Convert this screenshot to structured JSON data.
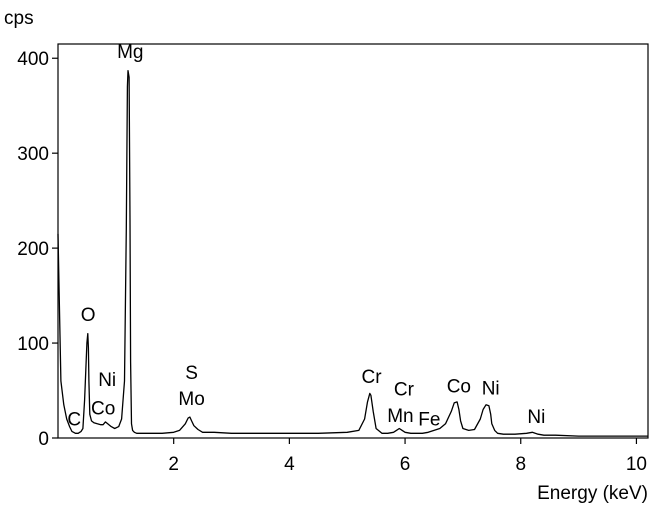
{
  "chart_data": {
    "type": "line",
    "title": "",
    "xlabel": "Energy (keV)",
    "ylabel": "cps",
    "xlim": [
      0,
      10.2
    ],
    "ylim": [
      0,
      415
    ],
    "x_ticks": [
      2,
      4,
      6,
      8,
      10
    ],
    "y_ticks": [
      0,
      100,
      200,
      300,
      400
    ],
    "x_tick_labels": [
      "2",
      "4",
      "6",
      "8",
      "10"
    ],
    "y_tick_labels": [
      "0",
      "100",
      "200",
      "300",
      "400"
    ],
    "grid": false,
    "legend": "none",
    "line_color": "#000000",
    "series": [
      {
        "x": [
          0.0,
          0.02,
          0.05,
          0.1,
          0.15,
          0.2,
          0.24,
          0.27,
          0.3,
          0.35,
          0.4,
          0.43,
          0.46,
          0.5,
          0.515,
          0.525,
          0.535,
          0.55,
          0.58,
          0.62,
          0.68,
          0.74,
          0.78,
          0.82,
          0.86,
          0.92,
          0.98,
          1.05,
          1.1,
          1.15,
          1.18,
          1.2,
          1.21,
          1.23,
          1.245,
          1.255,
          1.27,
          1.29,
          1.32,
          1.36,
          1.4,
          1.5,
          1.6,
          1.8,
          2.0,
          2.1,
          2.2,
          2.25,
          2.28,
          2.31,
          2.35,
          2.42,
          2.5,
          2.7,
          3.0,
          3.5,
          4.0,
          4.5,
          5.0,
          5.2,
          5.3,
          5.35,
          5.39,
          5.41,
          5.45,
          5.5,
          5.6,
          5.7,
          5.8,
          5.85,
          5.9,
          5.95,
          6.0,
          6.1,
          6.2,
          6.3,
          6.4,
          6.5,
          6.6,
          6.7,
          6.8,
          6.85,
          6.9,
          6.93,
          6.96,
          7.0,
          7.1,
          7.2,
          7.3,
          7.35,
          7.4,
          7.45,
          7.48,
          7.5,
          7.55,
          7.6,
          7.7,
          7.9,
          8.1,
          8.2,
          8.25,
          8.3,
          8.4,
          8.6,
          9.0,
          9.5,
          10.0,
          10.2
        ],
        "y": [
          215,
          150,
          60,
          35,
          20,
          12,
          7,
          6,
          5,
          5,
          7,
          10,
          40,
          100,
          110,
          95,
          60,
          25,
          18,
          16,
          15,
          14,
          14,
          17,
          15,
          12,
          10,
          12,
          20,
          60,
          220,
          370,
          387,
          380,
          230,
          80,
          15,
          8,
          6,
          5,
          5,
          5,
          5,
          5,
          6,
          8,
          15,
          21,
          22,
          18,
          13,
          9,
          6,
          6,
          5,
          5,
          5,
          5,
          6,
          8,
          20,
          38,
          47,
          45,
          28,
          10,
          5,
          5,
          6,
          8,
          10,
          8,
          6,
          5,
          5,
          5,
          6,
          8,
          10,
          15,
          28,
          37,
          38,
          30,
          18,
          10,
          8,
          9,
          20,
          30,
          35,
          34,
          25,
          15,
          8,
          5,
          4,
          4,
          5,
          6,
          5,
          4,
          3,
          3,
          2,
          2,
          2,
          2
        ]
      }
    ],
    "annotations": [
      {
        "label": "Mg",
        "x": 1.25,
        "y": 400
      },
      {
        "label": "O",
        "x": 0.52,
        "y": 123
      },
      {
        "label": "Ni",
        "x": 0.85,
        "y": 55
      },
      {
        "label": "Co",
        "x": 0.78,
        "y": 25
      },
      {
        "label": "C",
        "x": 0.28,
        "y": 13
      },
      {
        "label": "S",
        "x": 2.31,
        "y": 62
      },
      {
        "label": "Mo",
        "x": 2.31,
        "y": 35
      },
      {
        "label": "Cr",
        "x": 5.42,
        "y": 58
      },
      {
        "label": "Cr",
        "x": 5.98,
        "y": 45
      },
      {
        "label": "Mn",
        "x": 5.92,
        "y": 17
      },
      {
        "label": "Fe",
        "x": 6.42,
        "y": 13
      },
      {
        "label": "Co",
        "x": 6.93,
        "y": 48
      },
      {
        "label": "Ni",
        "x": 7.48,
        "y": 46
      },
      {
        "label": "Ni",
        "x": 8.27,
        "y": 16
      }
    ]
  }
}
